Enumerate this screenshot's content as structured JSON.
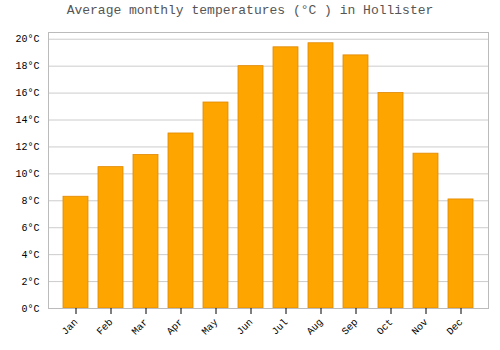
{
  "chart_data": {
    "type": "bar",
    "title": "Average monthly temperatures (°C ) in Hollister",
    "categories": [
      "Jan",
      "Feb",
      "Mar",
      "Apr",
      "May",
      "Jun",
      "Jul",
      "Aug",
      "Sep",
      "Oct",
      "Nov",
      "Dec"
    ],
    "values": [
      8.3,
      10.5,
      11.4,
      13.0,
      15.3,
      18.0,
      19.4,
      19.7,
      18.8,
      16.0,
      11.5,
      8.1
    ],
    "color": "#FFA500",
    "ylim": [
      0,
      20.5
    ],
    "yticks": [
      {
        "value": 0,
        "label": "0°C"
      },
      {
        "value": 2,
        "label": "2°C"
      },
      {
        "value": 4,
        "label": "4°C"
      },
      {
        "value": 6,
        "label": "6°C"
      },
      {
        "value": 8,
        "label": "8°C"
      },
      {
        "value": 10,
        "label": "10°C"
      },
      {
        "value": 12,
        "label": "12°C"
      },
      {
        "value": 14,
        "label": "14°C"
      },
      {
        "value": 16,
        "label": "16°C"
      },
      {
        "value": 18,
        "label": "18°C"
      },
      {
        "value": 20,
        "label": "20°C"
      }
    ],
    "grid": true
  }
}
